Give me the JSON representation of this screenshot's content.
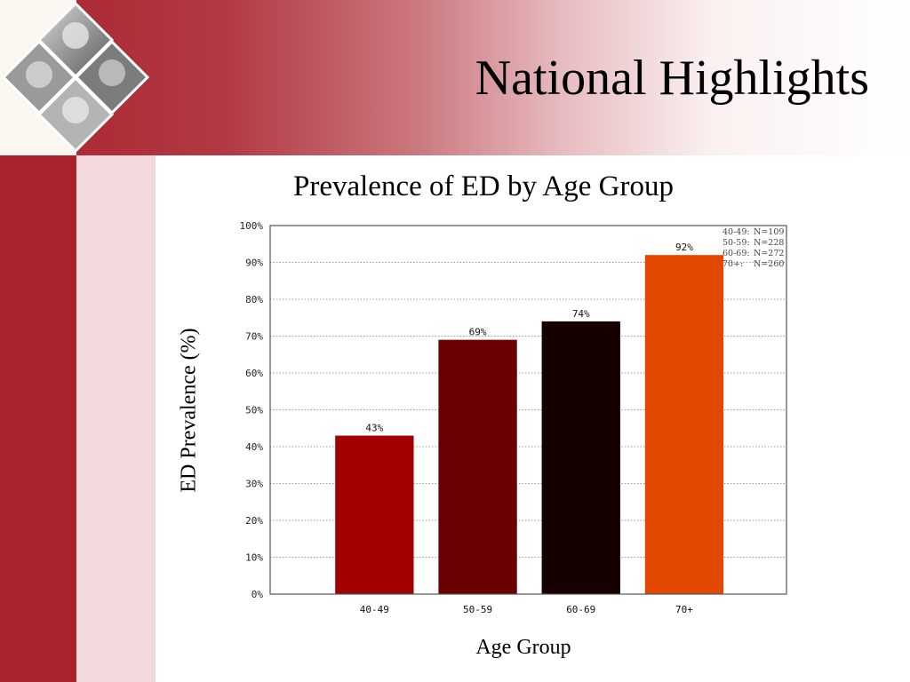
{
  "slide": {
    "title": "National Highlights"
  },
  "colors": {
    "brand_dark_red": "#a8232e",
    "stripe_light": "#f4d9dc"
  },
  "chart_data": {
    "type": "bar",
    "title": "Prevalence of ED by Age Group",
    "xlabel": "Age Group",
    "ylabel": "ED Prevalence (%)",
    "categories": [
      "40-49",
      "50-59",
      "60-69",
      "70+"
    ],
    "values": [
      43,
      69,
      74,
      92
    ],
    "value_labels": [
      "43%",
      "69%",
      "74%",
      "92%"
    ],
    "bar_colors": [
      "#a00000",
      "#6a0000",
      "#160000",
      "#e24800"
    ],
    "ylim": [
      0,
      100
    ],
    "yticks": [
      "0%",
      "10%",
      "20%",
      "30%",
      "40%",
      "50%",
      "60%",
      "70%",
      "80%",
      "90%",
      "100%"
    ],
    "grid": true,
    "legend_position": "top-right",
    "legend_entries": [
      {
        "group": "40-49:",
        "n": "N=109"
      },
      {
        "group": "50-59:",
        "n": "N=228"
      },
      {
        "group": "60-69:",
        "n": "N=272"
      },
      {
        "group": "70+:",
        "n": "N=260"
      }
    ]
  }
}
